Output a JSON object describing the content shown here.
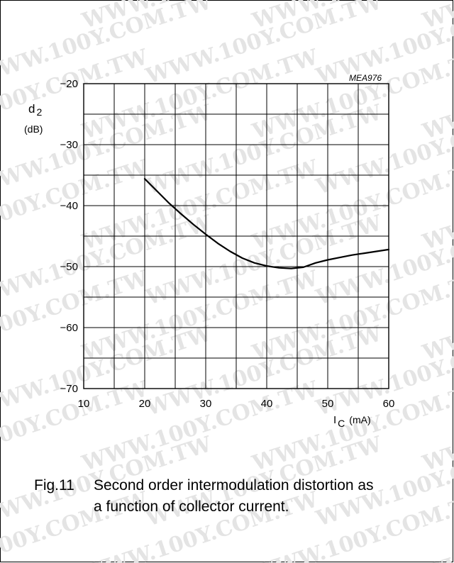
{
  "figure_code": "MEA976",
  "watermark": "WWW.100Y.COM.TW",
  "caption": {
    "number": "Fig.11",
    "line1": "Second order intermodulation distortion as",
    "line2": "a function of collector current."
  },
  "chart_data": {
    "type": "line",
    "title": "",
    "ylabel_symbol": "d",
    "ylabel_subscript": "2",
    "ylabel_unit": "(dB)",
    "xlabel_symbol": "I",
    "xlabel_subscript": "C",
    "xlabel_unit": "(mA)",
    "xlim": [
      10,
      60
    ],
    "ylim": [
      -70,
      -20
    ],
    "x_ticks": [
      "10",
      "20",
      "30",
      "40",
      "50",
      "60"
    ],
    "y_ticks": [
      "−20",
      "−30",
      "−40",
      "−50",
      "−60",
      "−70"
    ],
    "grid": true,
    "series": [
      {
        "x": [
          20,
          22,
          24,
          26,
          28,
          30,
          32,
          34,
          36,
          38,
          40,
          42,
          44,
          46,
          48,
          50,
          52,
          54,
          56,
          58,
          60
        ],
        "y": [
          -35.6,
          -37.6,
          -39.6,
          -41.4,
          -43.1,
          -44.7,
          -46.2,
          -47.5,
          -48.6,
          -49.4,
          -49.9,
          -50.2,
          -50.3,
          -50.1,
          -49.4,
          -48.9,
          -48.5,
          -48.1,
          -47.8,
          -47.5,
          -47.2
        ]
      }
    ]
  }
}
